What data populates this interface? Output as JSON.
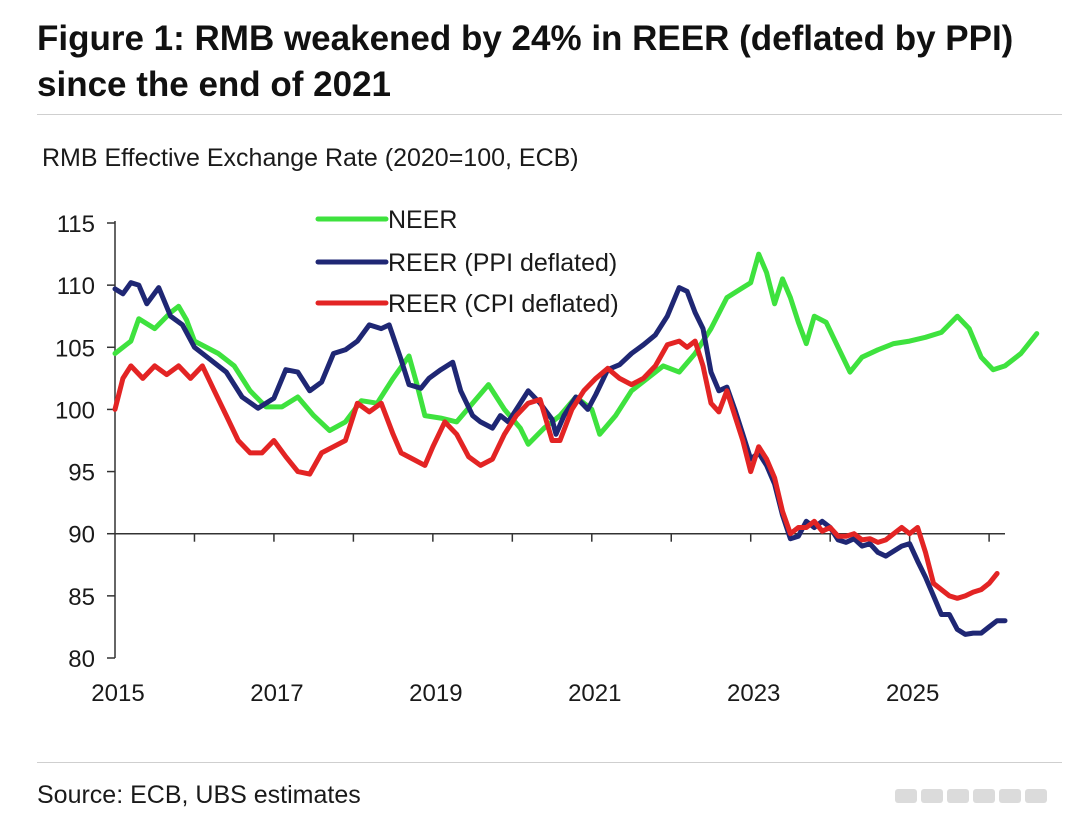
{
  "figure": {
    "title": "Figure 1: RMB weakened by 24% in REER (deflated by PPI) since the end of 2021",
    "source": "Source: ECB, UBS estimates"
  },
  "chart_data": {
    "type": "line",
    "title": "RMB Effective Exchange Rate (2020=100, ECB)",
    "xlabel": "",
    "ylabel": "",
    "xlim": [
      2015,
      2026.2
    ],
    "ylim": [
      80,
      115
    ],
    "x_ticks": [
      2015,
      2017,
      2019,
      2021,
      2023,
      2025
    ],
    "y_ticks": [
      80,
      85,
      90,
      95,
      100,
      105,
      110,
      115
    ],
    "reference_line": 90,
    "legend_position": "top-center",
    "series": [
      {
        "name": "NEER",
        "color": "#3ee23e",
        "points": [
          [
            2015.0,
            104.5
          ],
          [
            2015.2,
            105.5
          ],
          [
            2015.3,
            107.3
          ],
          [
            2015.5,
            106.5
          ],
          [
            2015.7,
            107.8
          ],
          [
            2015.8,
            108.3
          ],
          [
            2015.9,
            107.2
          ],
          [
            2016.0,
            105.5
          ],
          [
            2016.3,
            104.5
          ],
          [
            2016.5,
            103.5
          ],
          [
            2016.7,
            101.5
          ],
          [
            2016.9,
            100.2
          ],
          [
            2017.1,
            100.2
          ],
          [
            2017.3,
            101.0
          ],
          [
            2017.5,
            99.5
          ],
          [
            2017.7,
            98.3
          ],
          [
            2017.9,
            99.0
          ],
          [
            2018.1,
            100.7
          ],
          [
            2018.3,
            100.5
          ],
          [
            2018.5,
            102.5
          ],
          [
            2018.7,
            104.3
          ],
          [
            2018.8,
            102.0
          ],
          [
            2018.9,
            99.5
          ],
          [
            2019.1,
            99.3
          ],
          [
            2019.3,
            99.0
          ],
          [
            2019.5,
            100.5
          ],
          [
            2019.7,
            102.0
          ],
          [
            2019.9,
            100.0
          ],
          [
            2020.1,
            98.5
          ],
          [
            2020.2,
            97.2
          ],
          [
            2020.4,
            98.5
          ],
          [
            2020.6,
            99.5
          ],
          [
            2020.8,
            101.0
          ],
          [
            2021.0,
            100.0
          ],
          [
            2021.1,
            98.0
          ],
          [
            2021.3,
            99.5
          ],
          [
            2021.5,
            101.5
          ],
          [
            2021.7,
            102.5
          ],
          [
            2021.9,
            103.5
          ],
          [
            2022.1,
            103.0
          ],
          [
            2022.3,
            104.5
          ],
          [
            2022.5,
            106.5
          ],
          [
            2022.7,
            109.0
          ],
          [
            2022.9,
            109.8
          ],
          [
            2023.0,
            110.2
          ],
          [
            2023.1,
            112.5
          ],
          [
            2023.2,
            111.0
          ],
          [
            2023.3,
            108.5
          ],
          [
            2023.4,
            110.5
          ],
          [
            2023.5,
            109.0
          ],
          [
            2023.6,
            107.0
          ],
          [
            2023.7,
            105.3
          ],
          [
            2023.8,
            107.5
          ],
          [
            2023.95,
            107.0
          ],
          [
            2024.1,
            105.0
          ],
          [
            2024.25,
            103.0
          ],
          [
            2024.4,
            104.2
          ],
          [
            2024.6,
            104.8
          ],
          [
            2024.8,
            105.3
          ],
          [
            2025.0,
            105.5
          ],
          [
            2025.2,
            105.8
          ],
          [
            2025.4,
            106.2
          ],
          [
            2025.6,
            107.5
          ],
          [
            2025.75,
            106.5
          ],
          [
            2025.9,
            104.2
          ],
          [
            2026.05,
            103.2
          ],
          [
            2026.2,
            103.5
          ],
          [
            2026.4,
            104.5
          ],
          [
            2026.6,
            106.1
          ]
        ]
      },
      {
        "name": "REER (PPI deflated)",
        "color": "#1f2774",
        "points": [
          [
            2015.0,
            109.7
          ],
          [
            2015.1,
            109.3
          ],
          [
            2015.2,
            110.2
          ],
          [
            2015.3,
            110.0
          ],
          [
            2015.4,
            108.5
          ],
          [
            2015.55,
            109.8
          ],
          [
            2015.7,
            107.5
          ],
          [
            2015.85,
            106.8
          ],
          [
            2016.0,
            105.0
          ],
          [
            2016.2,
            104.0
          ],
          [
            2016.4,
            103.0
          ],
          [
            2016.6,
            101.0
          ],
          [
            2016.8,
            100.1
          ],
          [
            2017.0,
            100.9
          ],
          [
            2017.15,
            103.2
          ],
          [
            2017.3,
            103.0
          ],
          [
            2017.45,
            101.5
          ],
          [
            2017.6,
            102.2
          ],
          [
            2017.75,
            104.5
          ],
          [
            2017.9,
            104.8
          ],
          [
            2018.05,
            105.5
          ],
          [
            2018.2,
            106.8
          ],
          [
            2018.35,
            106.5
          ],
          [
            2018.45,
            106.8
          ],
          [
            2018.6,
            104.0
          ],
          [
            2018.7,
            102.0
          ],
          [
            2018.85,
            101.7
          ],
          [
            2018.95,
            102.5
          ],
          [
            2019.1,
            103.2
          ],
          [
            2019.25,
            103.8
          ],
          [
            2019.35,
            101.5
          ],
          [
            2019.5,
            99.5
          ],
          [
            2019.6,
            99.0
          ],
          [
            2019.75,
            98.5
          ],
          [
            2019.85,
            99.5
          ],
          [
            2019.95,
            99.0
          ],
          [
            2020.1,
            100.5
          ],
          [
            2020.2,
            101.5
          ],
          [
            2020.35,
            100.5
          ],
          [
            2020.5,
            99.2
          ],
          [
            2020.55,
            98.0
          ],
          [
            2020.65,
            99.5
          ],
          [
            2020.8,
            101.0
          ],
          [
            2020.95,
            100.0
          ],
          [
            2021.05,
            101.2
          ],
          [
            2021.2,
            103.2
          ],
          [
            2021.35,
            103.6
          ],
          [
            2021.5,
            104.5
          ],
          [
            2021.65,
            105.2
          ],
          [
            2021.8,
            106.0
          ],
          [
            2021.95,
            107.5
          ],
          [
            2022.1,
            109.8
          ],
          [
            2022.2,
            109.5
          ],
          [
            2022.3,
            107.8
          ],
          [
            2022.4,
            106.5
          ],
          [
            2022.5,
            103.0
          ],
          [
            2022.6,
            101.5
          ],
          [
            2022.7,
            101.8
          ],
          [
            2022.8,
            100.0
          ],
          [
            2022.9,
            98.0
          ],
          [
            2023.0,
            96.0
          ],
          [
            2023.1,
            96.5
          ],
          [
            2023.2,
            95.5
          ],
          [
            2023.3,
            94.0
          ],
          [
            2023.4,
            91.5
          ],
          [
            2023.5,
            89.6
          ],
          [
            2023.6,
            89.8
          ],
          [
            2023.7,
            91.0
          ],
          [
            2023.8,
            90.5
          ],
          [
            2023.9,
            91.0
          ],
          [
            2024.0,
            90.5
          ],
          [
            2024.1,
            89.5
          ],
          [
            2024.2,
            89.3
          ],
          [
            2024.3,
            89.6
          ],
          [
            2024.4,
            89.0
          ],
          [
            2024.5,
            89.2
          ],
          [
            2024.6,
            88.5
          ],
          [
            2024.7,
            88.2
          ],
          [
            2024.8,
            88.6
          ],
          [
            2024.9,
            89.0
          ],
          [
            2025.0,
            89.2
          ],
          [
            2025.1,
            87.8
          ],
          [
            2025.2,
            86.5
          ],
          [
            2025.3,
            85.0
          ],
          [
            2025.4,
            83.5
          ],
          [
            2025.5,
            83.5
          ],
          [
            2025.6,
            82.3
          ],
          [
            2025.7,
            81.9
          ],
          [
            2025.8,
            82.0
          ],
          [
            2025.9,
            82.0
          ],
          [
            2026.0,
            82.5
          ],
          [
            2026.1,
            83.0
          ],
          [
            2026.2,
            83.0
          ]
        ]
      },
      {
        "name": "REER (CPI deflated)",
        "color": "#e32424",
        "points": [
          [
            2015.0,
            100.0
          ],
          [
            2015.1,
            102.5
          ],
          [
            2015.2,
            103.5
          ],
          [
            2015.35,
            102.5
          ],
          [
            2015.5,
            103.5
          ],
          [
            2015.65,
            102.8
          ],
          [
            2015.8,
            103.5
          ],
          [
            2015.95,
            102.5
          ],
          [
            2016.1,
            103.5
          ],
          [
            2016.25,
            101.5
          ],
          [
            2016.4,
            99.5
          ],
          [
            2016.55,
            97.5
          ],
          [
            2016.7,
            96.5
          ],
          [
            2016.85,
            96.5
          ],
          [
            2017.0,
            97.5
          ],
          [
            2017.15,
            96.2
          ],
          [
            2017.3,
            95.0
          ],
          [
            2017.45,
            94.8
          ],
          [
            2017.6,
            96.5
          ],
          [
            2017.75,
            97.0
          ],
          [
            2017.9,
            97.5
          ],
          [
            2018.05,
            100.5
          ],
          [
            2018.2,
            99.8
          ],
          [
            2018.35,
            100.5
          ],
          [
            2018.5,
            98.0
          ],
          [
            2018.6,
            96.5
          ],
          [
            2018.75,
            96.0
          ],
          [
            2018.9,
            95.5
          ],
          [
            2019.0,
            97.0
          ],
          [
            2019.15,
            99.0
          ],
          [
            2019.3,
            98.0
          ],
          [
            2019.45,
            96.2
          ],
          [
            2019.6,
            95.5
          ],
          [
            2019.75,
            96.0
          ],
          [
            2019.9,
            98.0
          ],
          [
            2020.05,
            99.5
          ],
          [
            2020.2,
            100.5
          ],
          [
            2020.35,
            100.8
          ],
          [
            2020.5,
            97.5
          ],
          [
            2020.6,
            97.5
          ],
          [
            2020.75,
            100.0
          ],
          [
            2020.9,
            101.5
          ],
          [
            2021.05,
            102.5
          ],
          [
            2021.2,
            103.3
          ],
          [
            2021.35,
            102.5
          ],
          [
            2021.5,
            102.0
          ],
          [
            2021.65,
            102.5
          ],
          [
            2021.8,
            103.5
          ],
          [
            2021.95,
            105.2
          ],
          [
            2022.1,
            105.5
          ],
          [
            2022.2,
            105.0
          ],
          [
            2022.3,
            105.5
          ],
          [
            2022.4,
            103.5
          ],
          [
            2022.5,
            100.5
          ],
          [
            2022.6,
            99.8
          ],
          [
            2022.7,
            101.5
          ],
          [
            2022.8,
            99.5
          ],
          [
            2022.9,
            97.5
          ],
          [
            2023.0,
            95.0
          ],
          [
            2023.1,
            97.0
          ],
          [
            2023.2,
            96.0
          ],
          [
            2023.3,
            94.5
          ],
          [
            2023.4,
            91.8
          ],
          [
            2023.5,
            90.0
          ],
          [
            2023.6,
            90.5
          ],
          [
            2023.7,
            90.5
          ],
          [
            2023.8,
            91.0
          ],
          [
            2023.9,
            90.2
          ],
          [
            2024.0,
            90.5
          ],
          [
            2024.1,
            89.8
          ],
          [
            2024.2,
            89.8
          ],
          [
            2024.3,
            90.0
          ],
          [
            2024.4,
            89.5
          ],
          [
            2024.5,
            89.6
          ],
          [
            2024.6,
            89.3
          ],
          [
            2024.7,
            89.5
          ],
          [
            2024.8,
            90.0
          ],
          [
            2024.9,
            90.5
          ],
          [
            2025.0,
            90.0
          ],
          [
            2025.1,
            90.5
          ],
          [
            2025.2,
            88.5
          ],
          [
            2025.3,
            86.0
          ],
          [
            2025.4,
            85.5
          ],
          [
            2025.5,
            85.0
          ],
          [
            2025.6,
            84.8
          ],
          [
            2025.7,
            85.0
          ],
          [
            2025.8,
            85.3
          ],
          [
            2025.9,
            85.5
          ],
          [
            2026.0,
            86.0
          ],
          [
            2026.1,
            86.8
          ]
        ]
      }
    ]
  }
}
